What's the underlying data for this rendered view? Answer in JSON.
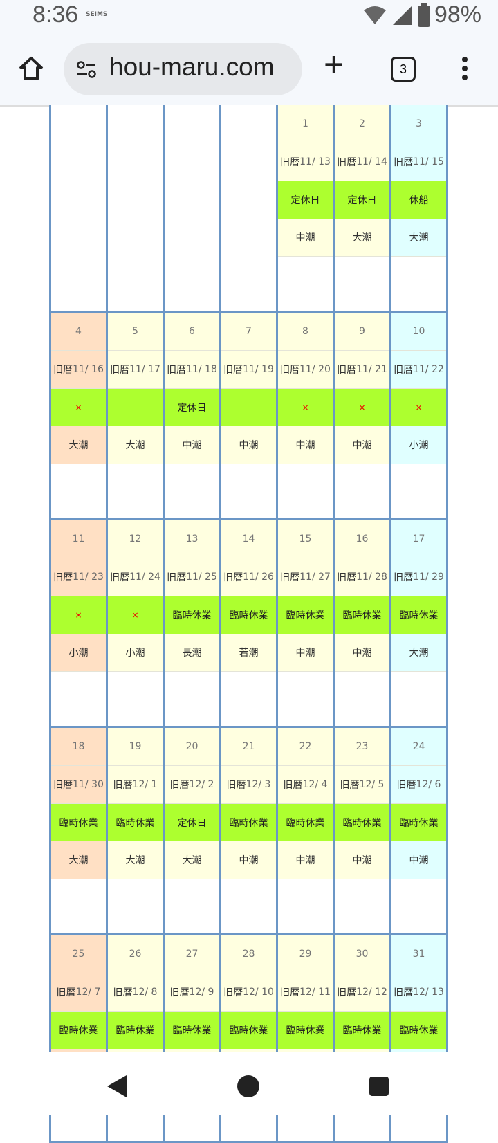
{
  "status_bar": {
    "time": "8:36",
    "carrier": "SEIMS",
    "battery": "98%",
    "icons": [
      "wifi-icon",
      "signal-icon",
      "battery-icon"
    ]
  },
  "browser": {
    "url": "hou-maru.com",
    "tab_count": "3"
  },
  "calendar": {
    "kyureki_label": "旧暦",
    "colors": {
      "sunday": "#ffe0c4",
      "weekday": "#ffffe0",
      "saturday": "#e0ffff",
      "status": "#adff2f",
      "border": "#6b96c6"
    },
    "weeks": [
      [
        null,
        null,
        null,
        null,
        {
          "day": "1",
          "kyureki": "11/ 13",
          "status": "定休日",
          "tide": "中潮"
        },
        {
          "day": "2",
          "kyureki": "11/ 14",
          "status": "定休日",
          "tide": "大潮"
        },
        {
          "day": "3",
          "kyureki": "11/ 15",
          "status": "休船",
          "tide": "大潮"
        }
      ],
      [
        {
          "day": "4",
          "kyureki": "11/ 16",
          "status": "×",
          "tide": "大潮"
        },
        {
          "day": "5",
          "kyureki": "11/ 17",
          "status": "---",
          "tide": "大潮"
        },
        {
          "day": "6",
          "kyureki": "11/ 18",
          "status": "定休日",
          "tide": "中潮"
        },
        {
          "day": "7",
          "kyureki": "11/ 19",
          "status": "---",
          "tide": "中潮"
        },
        {
          "day": "8",
          "kyureki": "11/ 20",
          "status": "×",
          "tide": "中潮"
        },
        {
          "day": "9",
          "kyureki": "11/ 21",
          "status": "×",
          "tide": "中潮"
        },
        {
          "day": "10",
          "kyureki": "11/ 22",
          "status": "×",
          "tide": "小潮"
        }
      ],
      [
        {
          "day": "11",
          "kyureki": "11/ 23",
          "status": "×",
          "tide": "小潮"
        },
        {
          "day": "12",
          "kyureki": "11/ 24",
          "status": "×",
          "tide": "小潮"
        },
        {
          "day": "13",
          "kyureki": "11/ 25",
          "status": "臨時休業",
          "tide": "長潮"
        },
        {
          "day": "14",
          "kyureki": "11/ 26",
          "status": "臨時休業",
          "tide": "若潮"
        },
        {
          "day": "15",
          "kyureki": "11/ 27",
          "status": "臨時休業",
          "tide": "中潮"
        },
        {
          "day": "16",
          "kyureki": "11/ 28",
          "status": "臨時休業",
          "tide": "中潮"
        },
        {
          "day": "17",
          "kyureki": "11/ 29",
          "status": "臨時休業",
          "tide": "大潮"
        }
      ],
      [
        {
          "day": "18",
          "kyureki": "11/ 30",
          "status": "臨時休業",
          "tide": "大潮"
        },
        {
          "day": "19",
          "kyureki": "12/ 1",
          "status": "臨時休業",
          "tide": "大潮"
        },
        {
          "day": "20",
          "kyureki": "12/ 2",
          "status": "定休日",
          "tide": "大潮"
        },
        {
          "day": "21",
          "kyureki": "12/ 3",
          "status": "臨時休業",
          "tide": "中潮"
        },
        {
          "day": "22",
          "kyureki": "12/ 4",
          "status": "臨時休業",
          "tide": "中潮"
        },
        {
          "day": "23",
          "kyureki": "12/ 5",
          "status": "臨時休業",
          "tide": "中潮"
        },
        {
          "day": "24",
          "kyureki": "12/ 6",
          "status": "臨時休業",
          "tide": "中潮"
        }
      ],
      [
        {
          "day": "25",
          "kyureki": "12/ 7",
          "status": "臨時休業"
        },
        {
          "day": "26",
          "kyureki": "12/ 8",
          "status": "臨時休業"
        },
        {
          "day": "27",
          "kyureki": "12/ 9",
          "status": "臨時休業"
        },
        {
          "day": "28",
          "kyureki": "12/ 10",
          "status": "臨時休業"
        },
        {
          "day": "29",
          "kyureki": "12/ 11",
          "status": "臨時休業"
        },
        {
          "day": "30",
          "kyureki": "12/ 12",
          "status": "臨時休業"
        },
        {
          "day": "31",
          "kyureki": "12/ 13",
          "status": "臨時休業"
        }
      ]
    ]
  }
}
